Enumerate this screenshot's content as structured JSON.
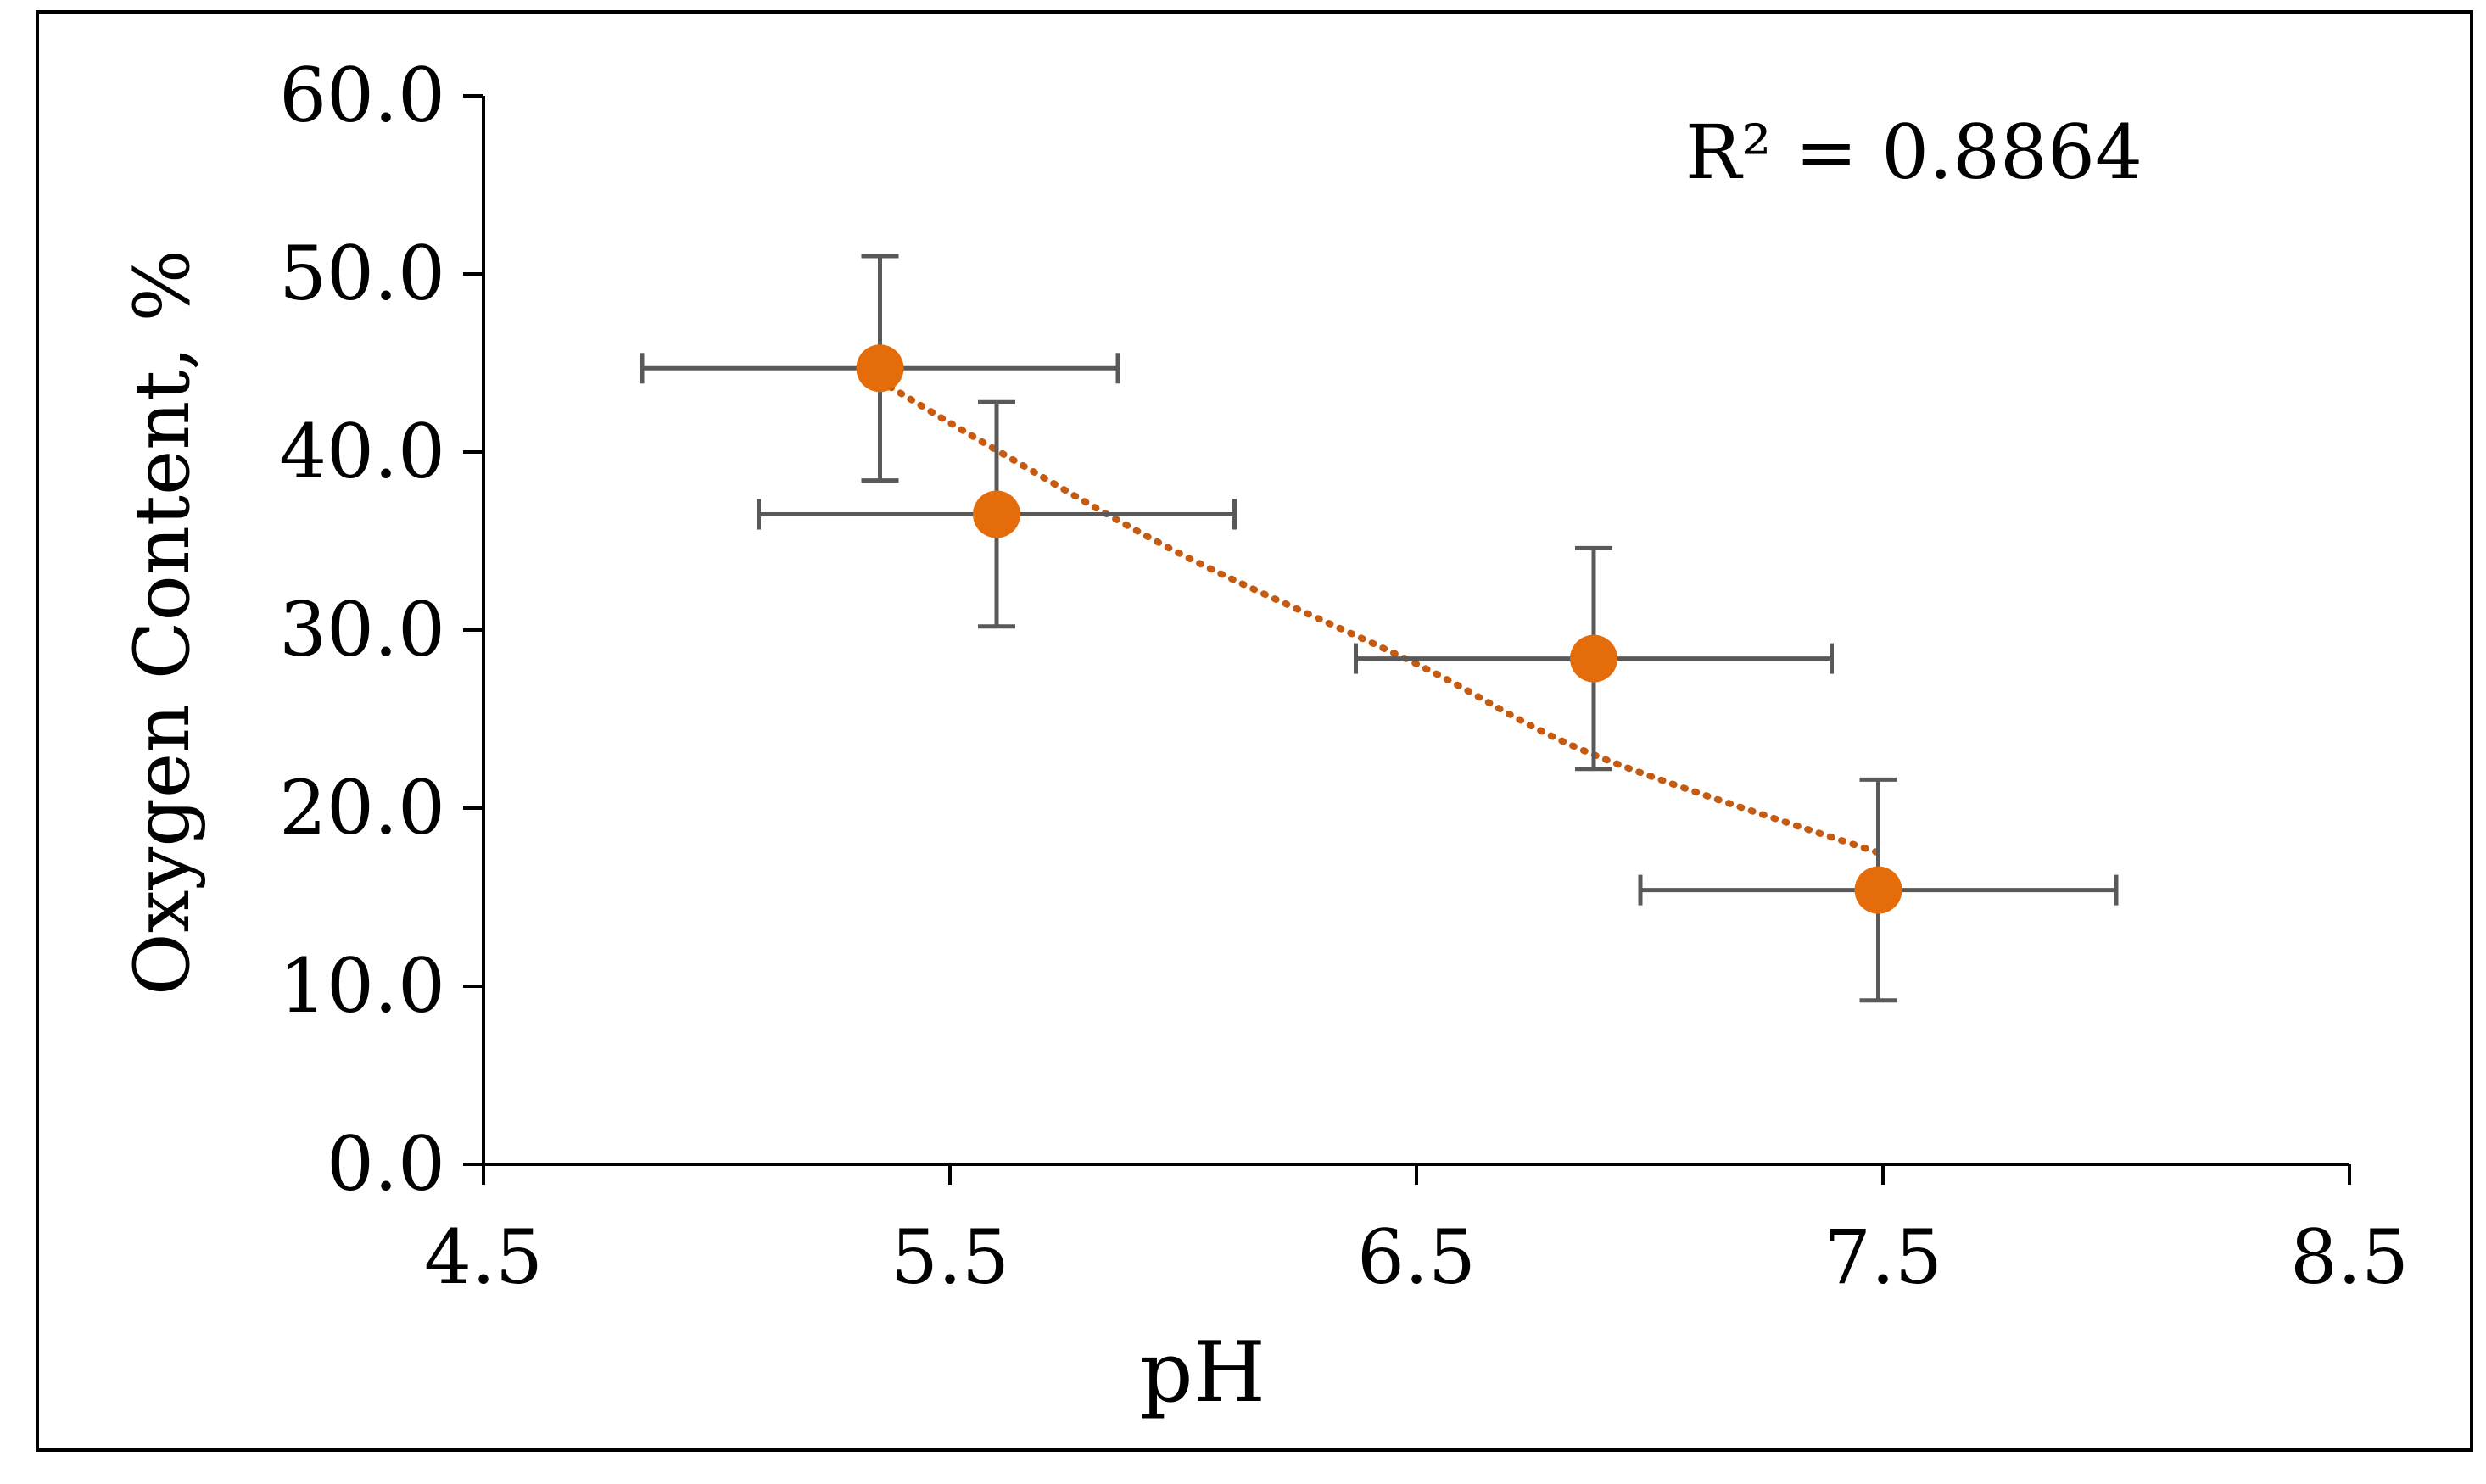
{
  "chart_data": {
    "type": "scatter",
    "title": "",
    "xlabel": "pH",
    "ylabel": "Oxygen Content, %",
    "xlim": [
      4.5,
      8.5
    ],
    "ylim": [
      0.0,
      60.0
    ],
    "x_ticks": [
      4.5,
      5.5,
      6.5,
      7.5,
      8.5
    ],
    "x_tick_labels": [
      "4.5",
      "5.5",
      "6.5",
      "7.5",
      "8.5"
    ],
    "y_ticks": [
      0,
      10,
      20,
      30,
      40,
      50,
      60
    ],
    "y_tick_labels": [
      "0.0",
      "10.0",
      "20.0",
      "30.0",
      "40.0",
      "50.0",
      "60.0"
    ],
    "grid": false,
    "series": [
      {
        "name": "Oxygen Content",
        "color": "#E46C0A",
        "points": [
          {
            "x": 5.35,
            "y": 44.7,
            "xerr": 0.51,
            "yerr_minus": 6.3,
            "yerr_plus": 6.3
          },
          {
            "x": 5.6,
            "y": 36.5,
            "xerr": 0.51,
            "yerr_minus": 6.3,
            "yerr_plus": 6.3
          },
          {
            "x": 6.88,
            "y": 28.4,
            "xerr": 0.51,
            "yerr_minus": 6.2,
            "yerr_plus": 6.2
          },
          {
            "x": 7.49,
            "y": 15.4,
            "xerr": 0.51,
            "yerr_minus": 6.2,
            "yerr_plus": 6.2
          }
        ]
      }
    ],
    "error_bar_color": "#595959",
    "trendline": {
      "type": "exponential",
      "color": "#C55A11",
      "style": "dotted",
      "x_range": [
        5.35,
        7.49
      ],
      "points": [
        {
          "x": 5.35,
          "y": 44.0
        },
        {
          "x": 5.6,
          "y": 40.1
        },
        {
          "x": 6.0,
          "y": 34.2
        },
        {
          "x": 6.5,
          "y": 28.1
        },
        {
          "x": 6.88,
          "y": 23.0
        },
        {
          "x": 7.49,
          "y": 17.5
        }
      ]
    },
    "annotations": [
      {
        "text": "R² = 0.8864",
        "position": "top-right"
      }
    ]
  }
}
